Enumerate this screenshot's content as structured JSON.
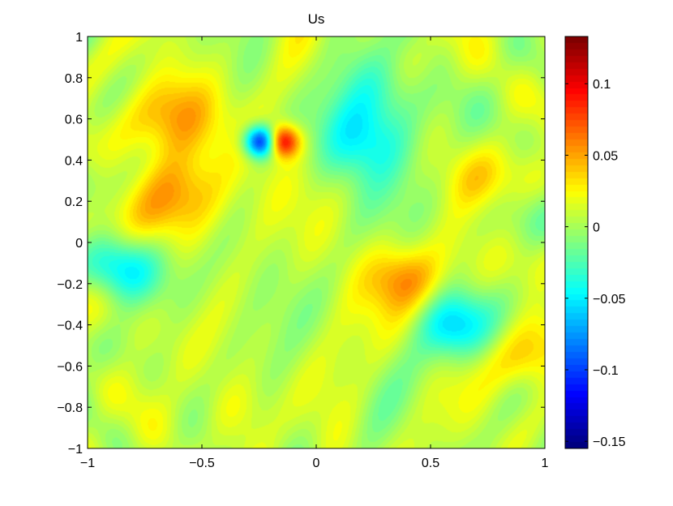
{
  "chart_data": {
    "type": "heatmap",
    "title": "Us",
    "xlabel": "",
    "ylabel": "",
    "xlim": [
      -1,
      1
    ],
    "ylim": [
      -1,
      1
    ],
    "x_ticks": [
      -1,
      -0.5,
      0,
      0.5,
      1
    ],
    "y_ticks": [
      -1,
      -0.8,
      -0.6,
      -0.4,
      -0.2,
      0,
      0.2,
      0.4,
      0.6,
      0.8,
      1
    ],
    "x_tick_labels": [
      "−1",
      "−0.5",
      "0",
      "0.5",
      "1"
    ],
    "y_tick_labels": [
      "−1",
      "−0.8",
      "−0.6",
      "−0.4",
      "−0.2",
      "0",
      "0.2",
      "0.4",
      "0.6",
      "0.8",
      "1"
    ],
    "grid": false,
    "colormap": "jet",
    "colorbar": {
      "clim": [
        -0.155,
        0.133
      ],
      "ticks": [
        -0.15,
        -0.1,
        -0.05,
        0,
        0.05,
        0.1
      ],
      "tick_labels": [
        "−0.15",
        "−0.1",
        "−0.05",
        "0",
        "0.05",
        "0.1"
      ],
      "placement": "right"
    },
    "features": [
      {
        "x": -0.23,
        "y": 0.49,
        "value": -0.155
      },
      {
        "x": -0.16,
        "y": 0.49,
        "value": 0.133
      },
      {
        "x": -0.62,
        "y": 0.6,
        "value": 0.055
      },
      {
        "x": -0.6,
        "y": 0.25,
        "value": 0.045
      },
      {
        "x": 0.22,
        "y": 0.5,
        "value": -0.045
      },
      {
        "x": 0.3,
        "y": 0.75,
        "value": -0.03
      },
      {
        "x": -0.85,
        "y": -0.12,
        "value": -0.04
      },
      {
        "x": 0.6,
        "y": -0.4,
        "value": -0.045
      },
      {
        "x": 0.38,
        "y": -0.18,
        "value": 0.045
      },
      {
        "x": 0.7,
        "y": 0.3,
        "value": 0.03
      },
      {
        "x": 0.45,
        "y": 0.85,
        "value": 0.02
      },
      {
        "x": -0.35,
        "y": -0.8,
        "value": 0.02
      },
      {
        "x": 0.97,
        "y": -0.6,
        "value": 0.04
      }
    ]
  }
}
